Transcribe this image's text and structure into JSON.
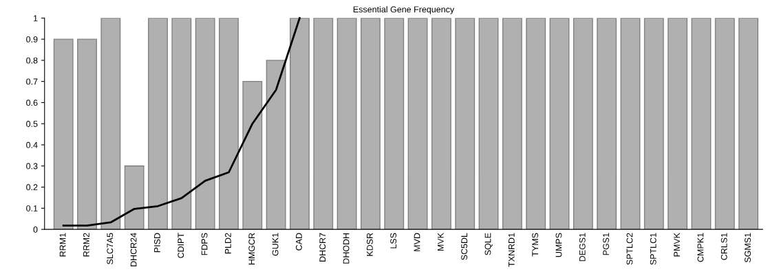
{
  "chart_data": {
    "type": "bar",
    "title": "Essential Gene Frequency",
    "categories": [
      "RRM1",
      "RRM2",
      "SLC7A5",
      "DHCR24",
      "PISD",
      "CDIPT",
      "FDPS",
      "PLD2",
      "HMGCR",
      "GUK1",
      "CAD",
      "DHCR7",
      "DHODH",
      "KDSR",
      "LSS",
      "MVD",
      "MVK",
      "SC5DL",
      "SQLE",
      "TXNRD1",
      "TYMS",
      "UMPS",
      "DEGS1",
      "PGS1",
      "SPTLC2",
      "SPTLC1",
      "PMVK",
      "CMPK1",
      "CRLS1",
      "SGMS1"
    ],
    "series": [
      {
        "color": "#b0b0b0",
        "values": [
          0.9,
          0.9,
          1,
          0.3,
          1,
          1,
          1,
          1,
          0.7,
          0.8,
          1,
          1,
          1,
          1,
          1,
          1,
          1,
          1,
          1,
          1,
          1,
          1,
          1,
          1,
          1,
          1,
          1,
          1,
          1,
          1
        ]
      },
      {
        "type": "line",
        "color": "#000000",
        "values": [
          0.018,
          0.018,
          0.033,
          0.097,
          0.11,
          0.148,
          0.23,
          0.27,
          0.5,
          0.66,
          1,
          null,
          null,
          null,
          null,
          null,
          null,
          null,
          null,
          null,
          null,
          null,
          null,
          null,
          null,
          null,
          null,
          null,
          null,
          null
        ]
      }
    ],
    "ylim": [
      0,
      1
    ],
    "yticks": [
      0,
      0.1,
      0.2,
      0.3,
      0.4,
      0.5,
      0.6,
      0.7,
      0.8,
      0.9,
      1
    ],
    "grid": false,
    "legend": false,
    "marker": "none",
    "line_style": "solid"
  }
}
